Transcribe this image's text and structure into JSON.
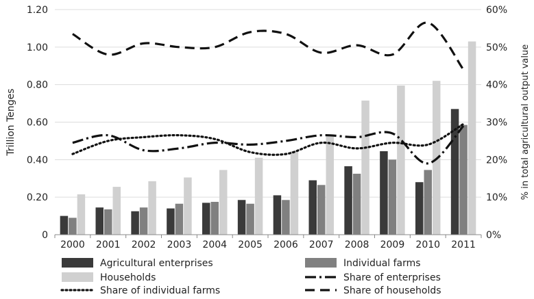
{
  "chart_data": {
    "type": "bar",
    "categories": [
      "2000",
      "2001",
      "2002",
      "2003",
      "2004",
      "2005",
      "2006",
      "2007",
      "2008",
      "2009",
      "2010",
      "2011"
    ],
    "xlabel": "",
    "ylabel": "Trillion Tenges",
    "y2label": "% in total agricultural output value",
    "ylim": [
      0,
      1.2
    ],
    "y2lim": [
      0,
      0.6
    ],
    "yticks": [
      "0",
      "0.20",
      "0.40",
      "0.60",
      "0.80",
      "1.00",
      "1.20"
    ],
    "y2ticks": [
      "0%",
      "10%",
      "20%",
      "30%",
      "40%",
      "50%",
      "60%"
    ],
    "grid": true,
    "legend_position": "bottom",
    "bar_series": [
      {
        "name": "Agricultural enterprises",
        "color": "#3a3a3a",
        "values": [
          0.1,
          0.145,
          0.125,
          0.14,
          0.17,
          0.185,
          0.21,
          0.29,
          0.365,
          0.445,
          0.28,
          0.67
        ]
      },
      {
        "name": "Individual farms",
        "color": "#808080",
        "values": [
          0.09,
          0.135,
          0.145,
          0.165,
          0.175,
          0.165,
          0.185,
          0.265,
          0.325,
          0.4,
          0.345,
          0.585
        ]
      },
      {
        "name": "Households",
        "color": "#d0d0d0",
        "values": [
          0.215,
          0.255,
          0.285,
          0.305,
          0.345,
          0.41,
          0.445,
          0.53,
          0.715,
          0.795,
          0.82,
          1.03
        ]
      }
    ],
    "line_series": [
      {
        "name": "Share of enterprises",
        "style": "dashdot",
        "color": "#111111",
        "values": [
          0.245,
          0.265,
          0.225,
          0.23,
          0.245,
          0.24,
          0.25,
          0.265,
          0.26,
          0.27,
          0.19,
          0.29
        ]
      },
      {
        "name": "Share of individual farms",
        "style": "dotted",
        "color": "#111111",
        "values": [
          0.215,
          0.25,
          0.26,
          0.265,
          0.255,
          0.22,
          0.215,
          0.245,
          0.23,
          0.245,
          0.24,
          0.295
        ]
      },
      {
        "name": "Share of households",
        "style": "dashed",
        "color": "#111111",
        "values": [
          0.535,
          0.48,
          0.51,
          0.5,
          0.5,
          0.54,
          0.535,
          0.485,
          0.505,
          0.48,
          0.565,
          0.44
        ]
      }
    ],
    "legend": [
      {
        "label": "Agricultural enterprises",
        "kind": "bar",
        "ref": 0
      },
      {
        "label": "Individual farms",
        "kind": "bar",
        "ref": 1
      },
      {
        "label": "Households",
        "kind": "bar",
        "ref": 2
      },
      {
        "label": "Share of enterprises",
        "kind": "line",
        "ref": 0
      },
      {
        "label": "Share of individual farms",
        "kind": "line",
        "ref": 1
      },
      {
        "label": "Share of households",
        "kind": "line",
        "ref": 2
      }
    ]
  }
}
